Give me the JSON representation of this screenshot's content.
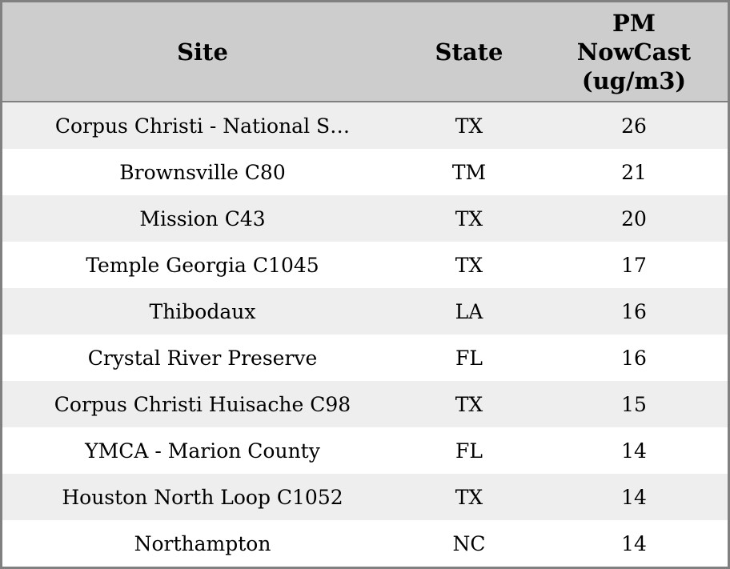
{
  "colors": {
    "header_bg": "#cdcdcd",
    "row_stripe": "#eeeeee",
    "row_plain": "#ffffff",
    "border": "#808080",
    "text": "#000000"
  },
  "chart_data": {
    "type": "table",
    "title": "",
    "columns": [
      "Site",
      "State",
      "PM NowCast (ug/m3)"
    ],
    "rows": [
      {
        "site": "Corpus Christi - National S…",
        "state": "TX",
        "pm_nowcast": 26
      },
      {
        "site": "Brownsville C80",
        "state": "TM",
        "pm_nowcast": 21
      },
      {
        "site": "Mission C43",
        "state": "TX",
        "pm_nowcast": 20
      },
      {
        "site": "Temple Georgia C1045",
        "state": "TX",
        "pm_nowcast": 17
      },
      {
        "site": "Thibodaux",
        "state": "LA",
        "pm_nowcast": 16
      },
      {
        "site": "Crystal River Preserve",
        "state": "FL",
        "pm_nowcast": 16
      },
      {
        "site": "Corpus Christi Huisache C98",
        "state": "TX",
        "pm_nowcast": 15
      },
      {
        "site": "YMCA - Marion County",
        "state": "FL",
        "pm_nowcast": 14
      },
      {
        "site": "Houston North Loop C1052",
        "state": "TX",
        "pm_nowcast": 14
      },
      {
        "site": "Northampton",
        "state": "NC",
        "pm_nowcast": 14
      }
    ]
  },
  "table": {
    "headers": {
      "site": "Site",
      "state": "State",
      "pm_lines": [
        "PM",
        "NowCast",
        "(ug/m3)"
      ]
    }
  }
}
